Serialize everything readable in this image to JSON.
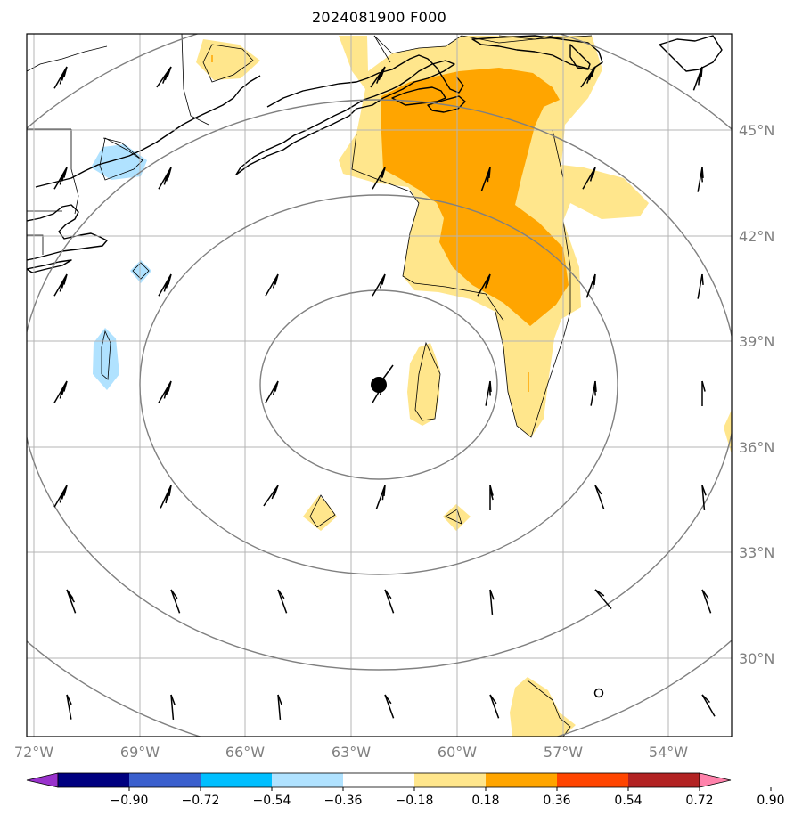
{
  "title": "2024081900 F000",
  "longitude_labels": [
    "72°W",
    "69°W",
    "66°W",
    "63°W",
    "60°W",
    "57°W",
    "54°W"
  ],
  "latitude_labels": [
    "45°N",
    "42°N",
    "39°N",
    "36°N",
    "33°N",
    "30°N"
  ],
  "storm_center": {
    "lon": -62.4,
    "lat": 37.8
  },
  "colorbar": {
    "tick_labels": [
      "−0.90",
      "−0.72",
      "−0.54",
      "−0.36",
      "−0.18",
      "0.18",
      "0.36",
      "0.54",
      "0.72",
      "0.90"
    ],
    "colors": [
      "#9932cc",
      "#000080",
      "#3a5fcd",
      "#00bfff",
      "#b0e2ff",
      "#ffffff",
      "#ffe68c",
      "#ffa500",
      "#ff4500",
      "#b22222",
      "#ff82ab"
    ],
    "extend": "both"
  },
  "colors": {
    "level_1": "#ffe68c",
    "level_2": "#ffa500",
    "negative_1": "#b0e2ff",
    "grid": "#b4b4b4",
    "range_rings": "#808080"
  }
}
